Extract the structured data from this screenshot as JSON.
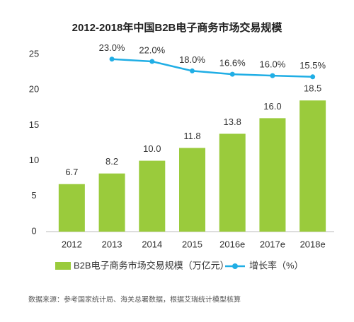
{
  "chart_data": {
    "type": "bar-line",
    "title": "2012-2018年中国B2B电子商务市场交易规模",
    "categories": [
      "2012",
      "2013",
      "2014",
      "2015",
      "2016e",
      "2017e",
      "2018e"
    ],
    "series": [
      {
        "name": "B2B电子商务市场交易规模（万亿元）",
        "type": "bar",
        "color": "#9acb3c",
        "values": [
          6.7,
          8.2,
          10.0,
          11.8,
          13.8,
          16.0,
          18.5
        ],
        "value_labels": [
          "6.7",
          "8.2",
          "10.0",
          "11.8",
          "13.8",
          "16.0",
          "18.5"
        ]
      },
      {
        "name": "增长率（%）",
        "type": "line",
        "axis": "y2",
        "color": "#20aee5",
        "values": [
          null,
          23.0,
          22.0,
          18.0,
          16.6,
          16.0,
          15.5
        ],
        "value_labels": [
          null,
          "23.0%",
          "22.0%",
          "18.0%",
          "16.6%",
          "16.0%",
          "15.5%"
        ]
      }
    ],
    "ylim": [
      0,
      25
    ],
    "yticks": [
      0,
      5,
      10,
      15,
      20,
      25
    ],
    "y2lim": [
      -50,
      25
    ],
    "legend": "bottom",
    "source": "数据来源：参考国家统计局、海关总署数据，根据艾瑞统计模型核算"
  }
}
